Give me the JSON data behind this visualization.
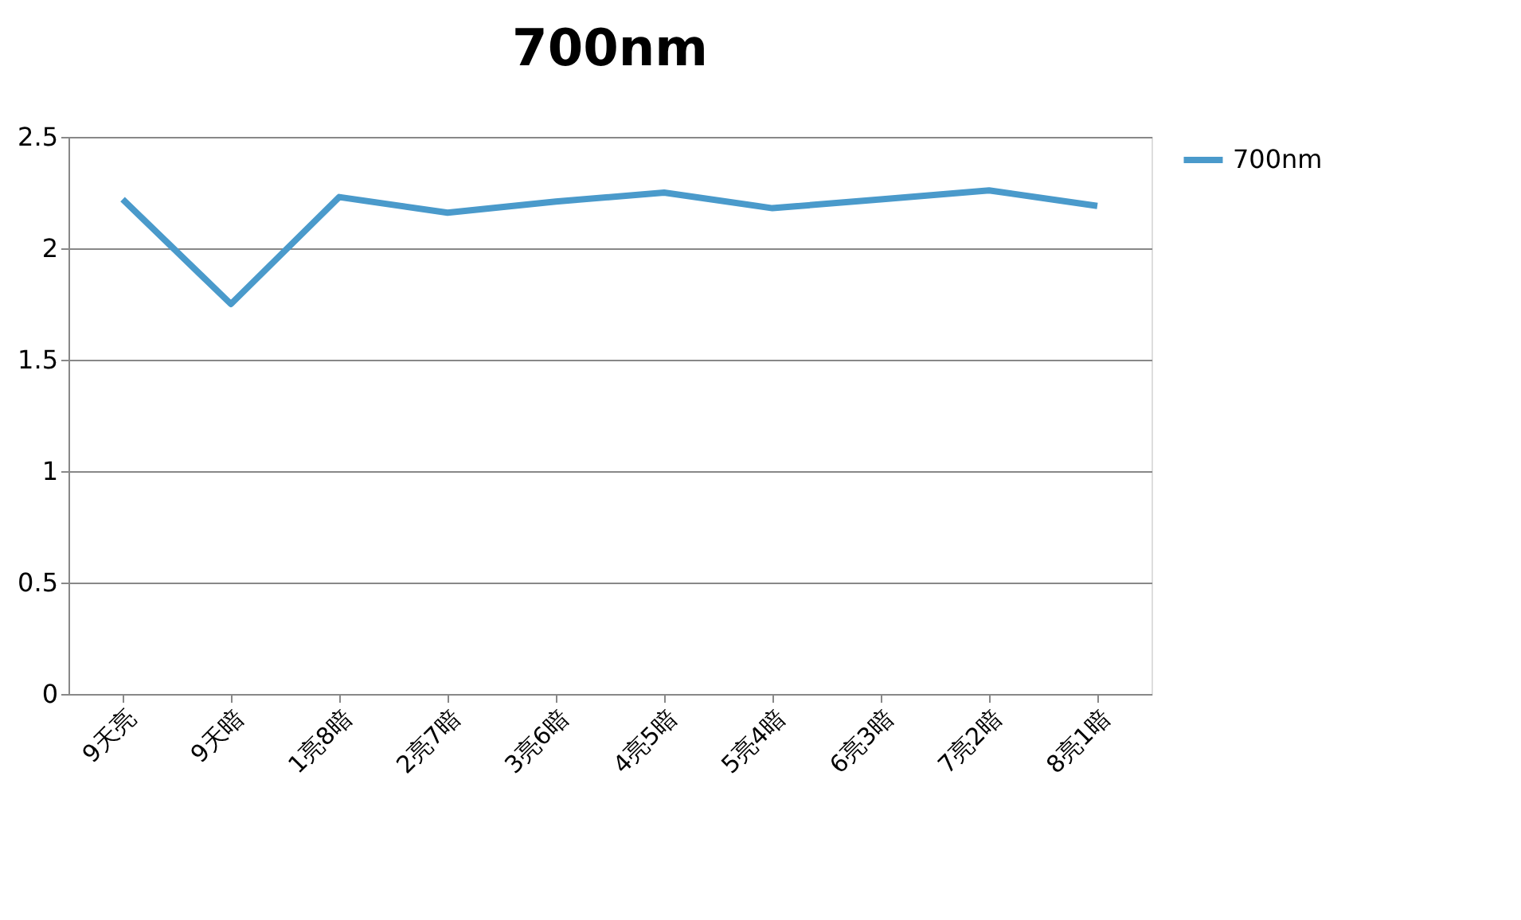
{
  "chart_data": {
    "type": "line",
    "title": "700nm",
    "categories": [
      "9天亮",
      "9天暗",
      "1亮8暗",
      "2亮7暗",
      "3亮6暗",
      "4亮5暗",
      "5亮4暗",
      "6亮3暗",
      "7亮2暗",
      "8亮1暗"
    ],
    "series": [
      {
        "name": "700nm",
        "color": "#4a9acb",
        "values": [
          2.22,
          1.75,
          2.23,
          2.16,
          2.21,
          2.25,
          2.18,
          2.22,
          2.26,
          2.19
        ]
      }
    ],
    "ylim": [
      0,
      2.5
    ],
    "yticks": [
      0,
      0.5,
      1,
      1.5,
      2,
      2.5
    ],
    "grid": "y",
    "legend": "right",
    "marker": "none",
    "line_style": "solid"
  }
}
